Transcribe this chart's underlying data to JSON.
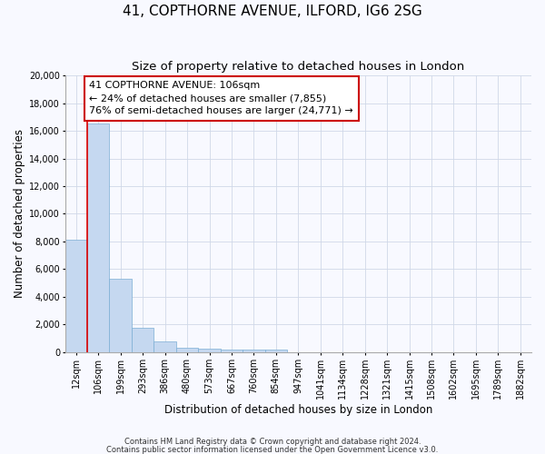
{
  "title": "41, COPTHORNE AVENUE, ILFORD, IG6 2SG",
  "subtitle": "Size of property relative to detached houses in London",
  "xlabel": "Distribution of detached houses by size in London",
  "ylabel": "Number of detached properties",
  "footnote1": "Contains HM Land Registry data © Crown copyright and database right 2024.",
  "footnote2": "Contains public sector information licensed under the Open Government Licence v3.0.",
  "annotation_title": "41 COPTHORNE AVENUE: 106sqm",
  "annotation_line2": "← 24% of detached houses are smaller (7,855)",
  "annotation_line3": "76% of semi-detached houses are larger (24,771) →",
  "categories": [
    "12sqm",
    "106sqm",
    "199sqm",
    "293sqm",
    "386sqm",
    "480sqm",
    "573sqm",
    "667sqm",
    "760sqm",
    "854sqm",
    "947sqm",
    "1041sqm",
    "1134sqm",
    "1228sqm",
    "1321sqm",
    "1415sqm",
    "1508sqm",
    "1602sqm",
    "1695sqm",
    "1789sqm",
    "1882sqm"
  ],
  "values": [
    8100,
    16500,
    5300,
    1750,
    800,
    350,
    280,
    220,
    200,
    200,
    0,
    0,
    0,
    0,
    0,
    0,
    0,
    0,
    0,
    0,
    0
  ],
  "bar_color": "#c5d8f0",
  "bar_edge_color": "#7baed4",
  "red_line_color": "#dd0000",
  "annotation_box_facecolor": "#ffffff",
  "annotation_box_edgecolor": "#cc0000",
  "ylim": [
    0,
    20000
  ],
  "yticks": [
    0,
    2000,
    4000,
    6000,
    8000,
    10000,
    12000,
    14000,
    16000,
    18000,
    20000
  ],
  "grid_color": "#d0d8e8",
  "background_color": "#f8f9ff",
  "title_fontsize": 11,
  "subtitle_fontsize": 9.5,
  "axis_label_fontsize": 8.5,
  "tick_fontsize": 7,
  "footnote_fontsize": 6,
  "annotation_fontsize": 8,
  "red_line_x": 0.5
}
